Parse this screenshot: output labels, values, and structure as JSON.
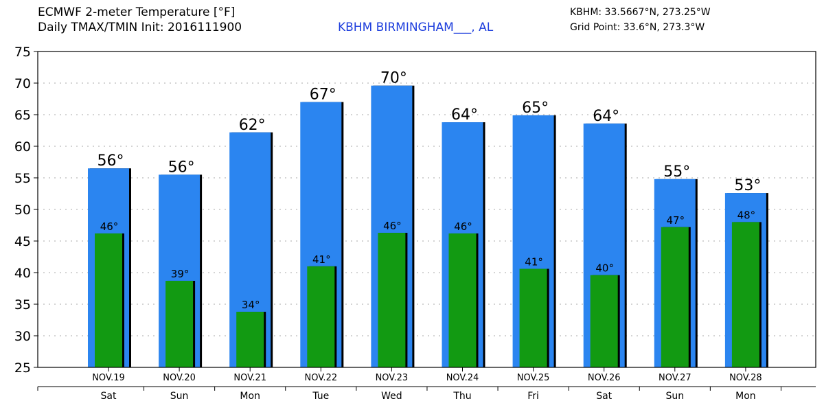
{
  "header": {
    "title_line1": "ECMWF 2-meter Temperature [°F]",
    "title_line2": "Daily TMAX/TMIN Init: 2016111900",
    "station": "KBHM BIRMINGHAM___, AL",
    "coords_station": "KBHM: 33.5667°N, 273.25°W",
    "coords_grid": "Grid Point: 33.6°N, 273.3°W"
  },
  "colors": {
    "tmax_bar": "#2b85f0",
    "tmin_bar": "#129a12",
    "station_text": "#1f3fdd",
    "grid": "#aaaaaa"
  },
  "chart_data": {
    "type": "bar",
    "categories": [
      "NOV.19",
      "NOV.20",
      "NOV.21",
      "NOV.22",
      "NOV.23",
      "NOV.24",
      "NOV.25",
      "NOV.26",
      "NOV.27",
      "NOV.28"
    ],
    "weekdays": [
      "Sat",
      "Sun",
      "Mon",
      "Tue",
      "Wed",
      "Thu",
      "Fri",
      "Sat",
      "Sun",
      "Mon"
    ],
    "series": [
      {
        "values": [
          56.5,
          55.5,
          62.2,
          67.0,
          69.6,
          63.8,
          64.9,
          63.6,
          54.8,
          52.6
        ],
        "labels": [
          "56°",
          "56°",
          "62°",
          "67°",
          "70°",
          "64°",
          "65°",
          "64°",
          "55°",
          "53°"
        ]
      },
      {
        "values": [
          46.2,
          38.7,
          33.8,
          41.0,
          46.3,
          46.2,
          40.6,
          39.6,
          47.2,
          48.0
        ],
        "labels": [
          "46°",
          "39°",
          "34°",
          "41°",
          "46°",
          "46°",
          "41°",
          "40°",
          "47°",
          "48°"
        ]
      }
    ],
    "ylim": [
      25,
      75
    ],
    "yticks": [
      25,
      30,
      35,
      40,
      45,
      50,
      55,
      60,
      65,
      70,
      75
    ],
    "grid": true
  }
}
